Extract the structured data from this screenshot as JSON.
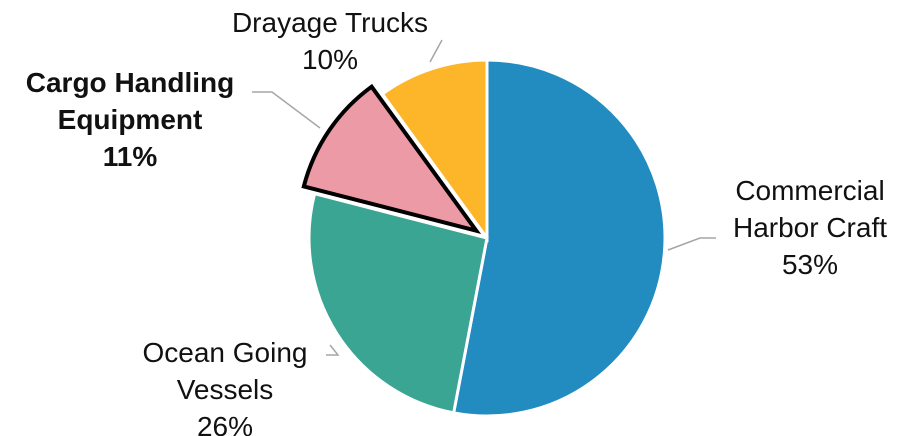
{
  "chart_data": {
    "type": "pie",
    "categories": [
      "Commercial Harbor Craft",
      "Ocean Going Vessels",
      "Cargo Handling Equipment",
      "Drayage Trucks"
    ],
    "values": [
      53,
      26,
      11,
      10
    ],
    "value_labels": [
      "53%",
      "26%",
      "11%",
      "10%"
    ],
    "colors": [
      "#228bc0",
      "#3aa593",
      "#ec9aa5",
      "#fdb52a"
    ],
    "exploded": [
      false,
      false,
      true,
      false
    ],
    "start_angle": 0,
    "direction": "clockwise"
  }
}
